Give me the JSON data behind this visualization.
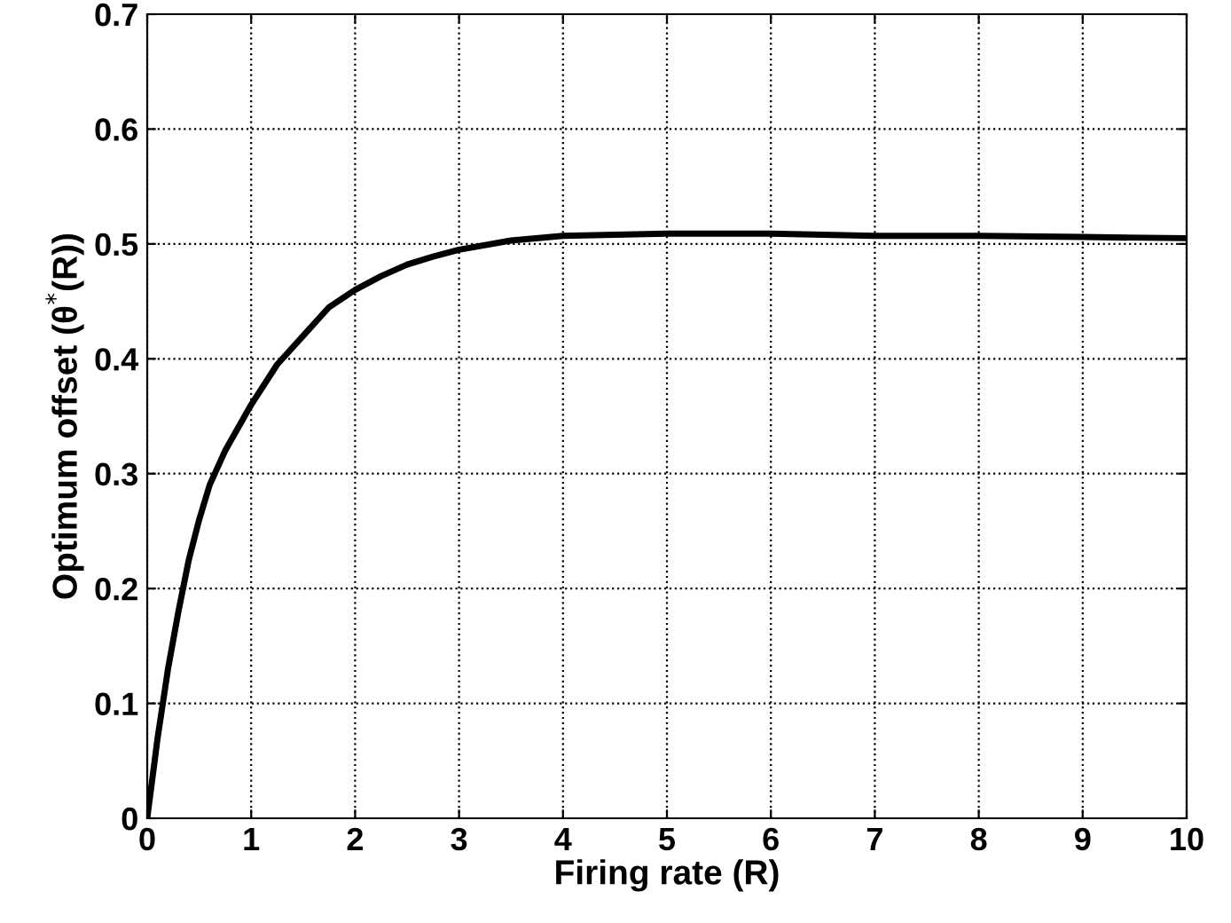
{
  "chart_data": {
    "type": "line",
    "xlabel": "Firing rate (R)",
    "ylabel": "Optimum offset (θ$^{*}$(R))",
    "x": [
      0,
      0.05,
      0.1,
      0.2,
      0.3,
      0.4,
      0.5,
      0.6,
      0.75,
      1,
      1.25,
      1.5,
      1.75,
      2,
      2.25,
      2.5,
      2.75,
      3,
      3.5,
      4,
      4.5,
      5,
      6,
      7,
      8,
      9,
      10
    ],
    "series": [
      {
        "color": "#000000",
        "values": [
          0,
          0.035,
          0.07,
          0.13,
          0.18,
          0.225,
          0.26,
          0.29,
          0.32,
          0.36,
          0.395,
          0.42,
          0.445,
          0.46,
          0.472,
          0.482,
          0.489,
          0.495,
          0.503,
          0.507,
          0.508,
          0.509,
          0.509,
          0.507,
          0.507,
          0.506,
          0.505
        ]
      }
    ],
    "xlim": [
      0,
      10
    ],
    "ylim": [
      0,
      0.7
    ],
    "xticks": [
      0,
      1,
      2,
      3,
      4,
      5,
      6,
      7,
      8,
      9,
      10
    ],
    "yticks": [
      0,
      0.1,
      0.2,
      0.3,
      0.4,
      0.5,
      0.6,
      0.7
    ],
    "grid": true,
    "line_style": "solid"
  }
}
